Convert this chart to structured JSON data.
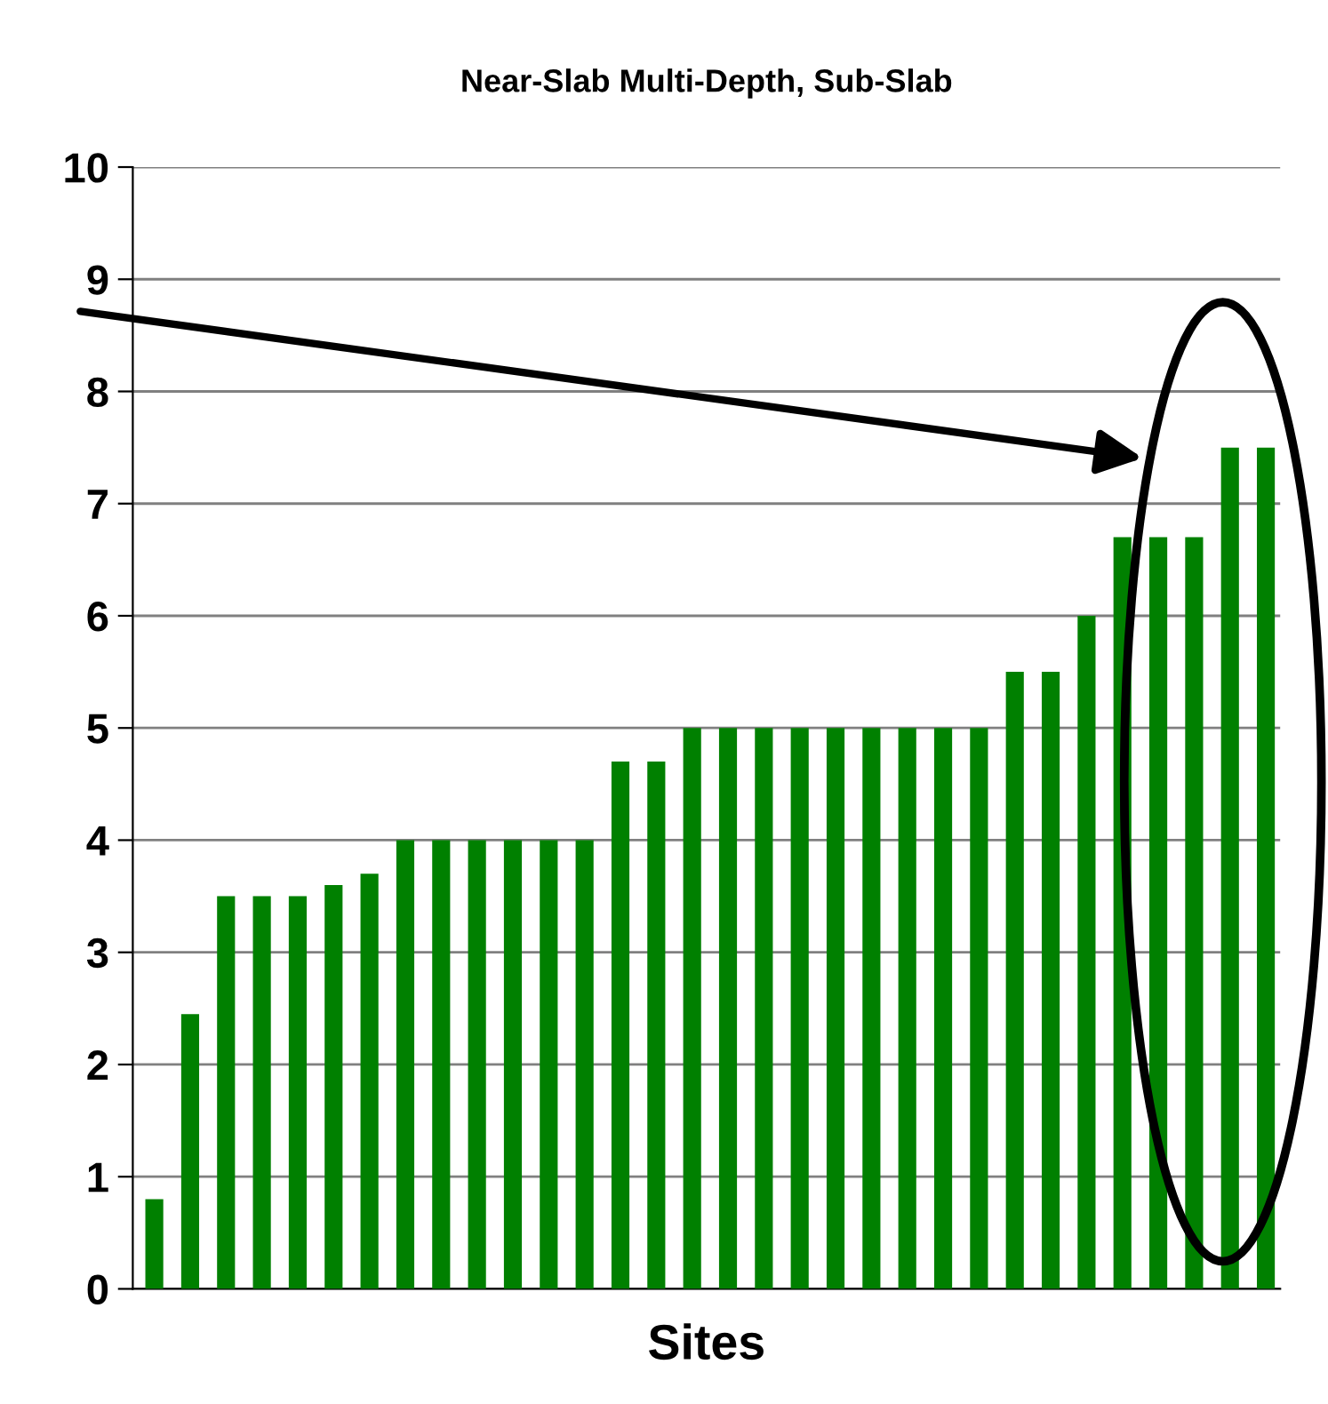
{
  "chart_data": {
    "type": "bar",
    "title": "Near-Slab Multi-Depth, Sub-Slab",
    "xlabel": "Sites",
    "categories": [
      null,
      null,
      null,
      null,
      null,
      null,
      null,
      null,
      null,
      null,
      null,
      null,
      null,
      null,
      null,
      null,
      null,
      null,
      null,
      null,
      null,
      null,
      null,
      null,
      null,
      null,
      null,
      null,
      null,
      null,
      null,
      null
    ],
    "values": [
      0.8,
      2.45,
      3.5,
      3.5,
      3.5,
      3.6,
      3.7,
      4,
      4,
      4,
      4,
      4,
      4,
      4.7,
      4.7,
      5,
      5,
      5,
      5,
      5,
      5,
      5,
      5,
      5,
      5.5,
      5.5,
      6,
      6.7,
      6.7,
      6.7,
      7.5,
      7.5
    ],
    "color": "#008000",
    "ylim": [
      0,
      10
    ],
    "yticks": [
      0,
      1,
      2,
      3,
      4,
      5,
      6,
      7,
      8,
      9,
      10
    ],
    "grid": "y",
    "tick_labels": "y",
    "legend": false
  }
}
